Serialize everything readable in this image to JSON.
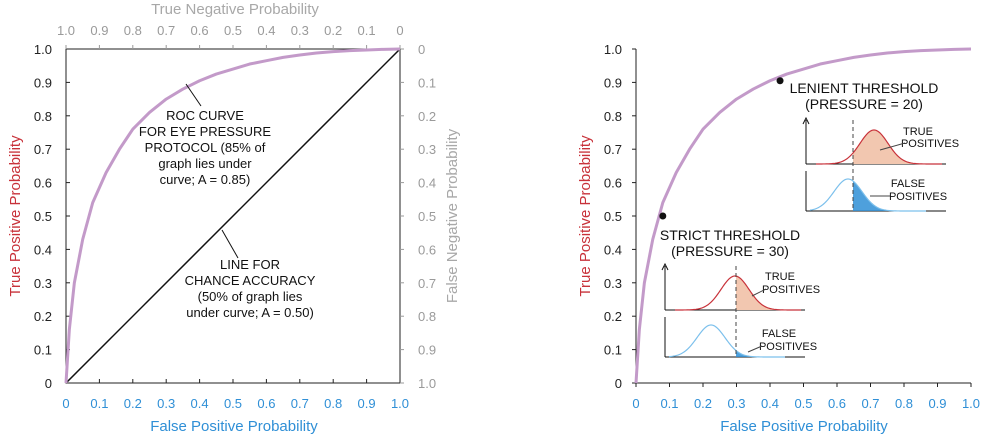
{
  "chart_data": [
    {
      "type": "line",
      "xlabel": "False Positive Probability",
      "ylabel": "True Positive Probability",
      "top_xlabel": "True Negative Probability",
      "right_ylabel": "False Negative Probability",
      "xlim": [
        0,
        1
      ],
      "ylim": [
        0,
        1
      ],
      "x_ticks": [
        "0",
        "0.1",
        "0.2",
        "0.3",
        "0.4",
        "0.5",
        "0.6",
        "0.7",
        "0.8",
        "0.9",
        "1.0"
      ],
      "y_ticks": [
        "0",
        "0.1",
        "0.2",
        "0.3",
        "0.4",
        "0.5",
        "0.6",
        "0.7",
        "0.8",
        "0.9",
        "1.0"
      ],
      "top_ticks": [
        "1.0",
        "0.9",
        "0.8",
        "0.7",
        "0.6",
        "0.5",
        "0.4",
        "0.3",
        "0.2",
        "0.1",
        "0"
      ],
      "right_ticks": [
        "0",
        "0.1",
        "0.2",
        "0.3",
        "0.4",
        "0.5",
        "0.6",
        "0.7",
        "0.8",
        "0.9",
        "1.0"
      ],
      "series": [
        {
          "x": [
            0,
            0.01,
            0.025,
            0.05,
            0.08,
            0.12,
            0.16,
            0.2,
            0.25,
            0.3,
            0.35,
            0.4,
            0.45,
            0.5,
            0.55,
            0.6,
            0.65,
            0.7,
            0.75,
            0.8,
            0.85,
            0.9,
            0.95,
            1.0
          ],
          "y": [
            0,
            0.16,
            0.3,
            0.43,
            0.54,
            0.63,
            0.7,
            0.76,
            0.81,
            0.85,
            0.88,
            0.905,
            0.925,
            0.94,
            0.955,
            0.965,
            0.975,
            0.982,
            0.988,
            0.992,
            0.995,
            0.997,
            0.999,
            1.0
          ]
        },
        {
          "x": [
            0,
            1
          ],
          "y": [
            0,
            1
          ]
        }
      ],
      "annotations": [
        {
          "lines": [
            "ROC CURVE",
            "FOR EYE PRESSURE",
            "PROTOCOL (85% of",
            "graph lies under",
            "curve;  A = 0.85)"
          ]
        },
        {
          "lines": [
            "LINE FOR",
            "CHANCE ACCURACY",
            "(50% of graph lies",
            "under curve;  A = 0.50)"
          ]
        }
      ]
    },
    {
      "type": "line",
      "xlabel": "False Positive Probability",
      "ylabel": "True Positive Probability",
      "xlim": [
        0,
        1
      ],
      "ylim": [
        0,
        1
      ],
      "x_ticks": [
        "0",
        "0.1",
        "0.2",
        "0.3",
        "0.4",
        "0.5",
        "0.6",
        "0.7",
        "0.8",
        "0.9",
        "1.0"
      ],
      "y_ticks": [
        "0",
        "0.1",
        "0.2",
        "0.3",
        "0.4",
        "0.5",
        "0.6",
        "0.7",
        "0.8",
        "0.9",
        "1.0"
      ],
      "series": [
        {
          "x": [
            0,
            0.01,
            0.025,
            0.05,
            0.08,
            0.12,
            0.16,
            0.2,
            0.25,
            0.3,
            0.35,
            0.4,
            0.45,
            0.5,
            0.55,
            0.6,
            0.65,
            0.7,
            0.75,
            0.8,
            0.85,
            0.9,
            0.95,
            1.0
          ],
          "y": [
            0,
            0.16,
            0.3,
            0.43,
            0.54,
            0.63,
            0.7,
            0.76,
            0.81,
            0.85,
            0.88,
            0.905,
            0.925,
            0.94,
            0.955,
            0.965,
            0.975,
            0.982,
            0.988,
            0.992,
            0.995,
            0.997,
            0.999,
            1.0
          ]
        }
      ],
      "points": [
        {
          "x": 0.08,
          "y": 0.5,
          "lines": [
            "STRICT THRESHOLD",
            "(PRESSURE = 30)"
          ]
        },
        {
          "x": 0.43,
          "y": 0.905,
          "lines": [
            "LENIENT THRESHOLD",
            "(PRESSURE = 20)"
          ]
        }
      ],
      "inset_labels": {
        "true_pos": [
          "TRUE",
          "POSITIVES"
        ],
        "false_pos": [
          "FALSE",
          "POSITIVES"
        ]
      }
    }
  ],
  "colors": {
    "roc": "#c39ac9",
    "red": "#c8323a",
    "blue": "#2f8fd6",
    "light_blue": "#7cc0ec",
    "peach": "#f2c7b0",
    "gray": "#a8a8a8"
  }
}
